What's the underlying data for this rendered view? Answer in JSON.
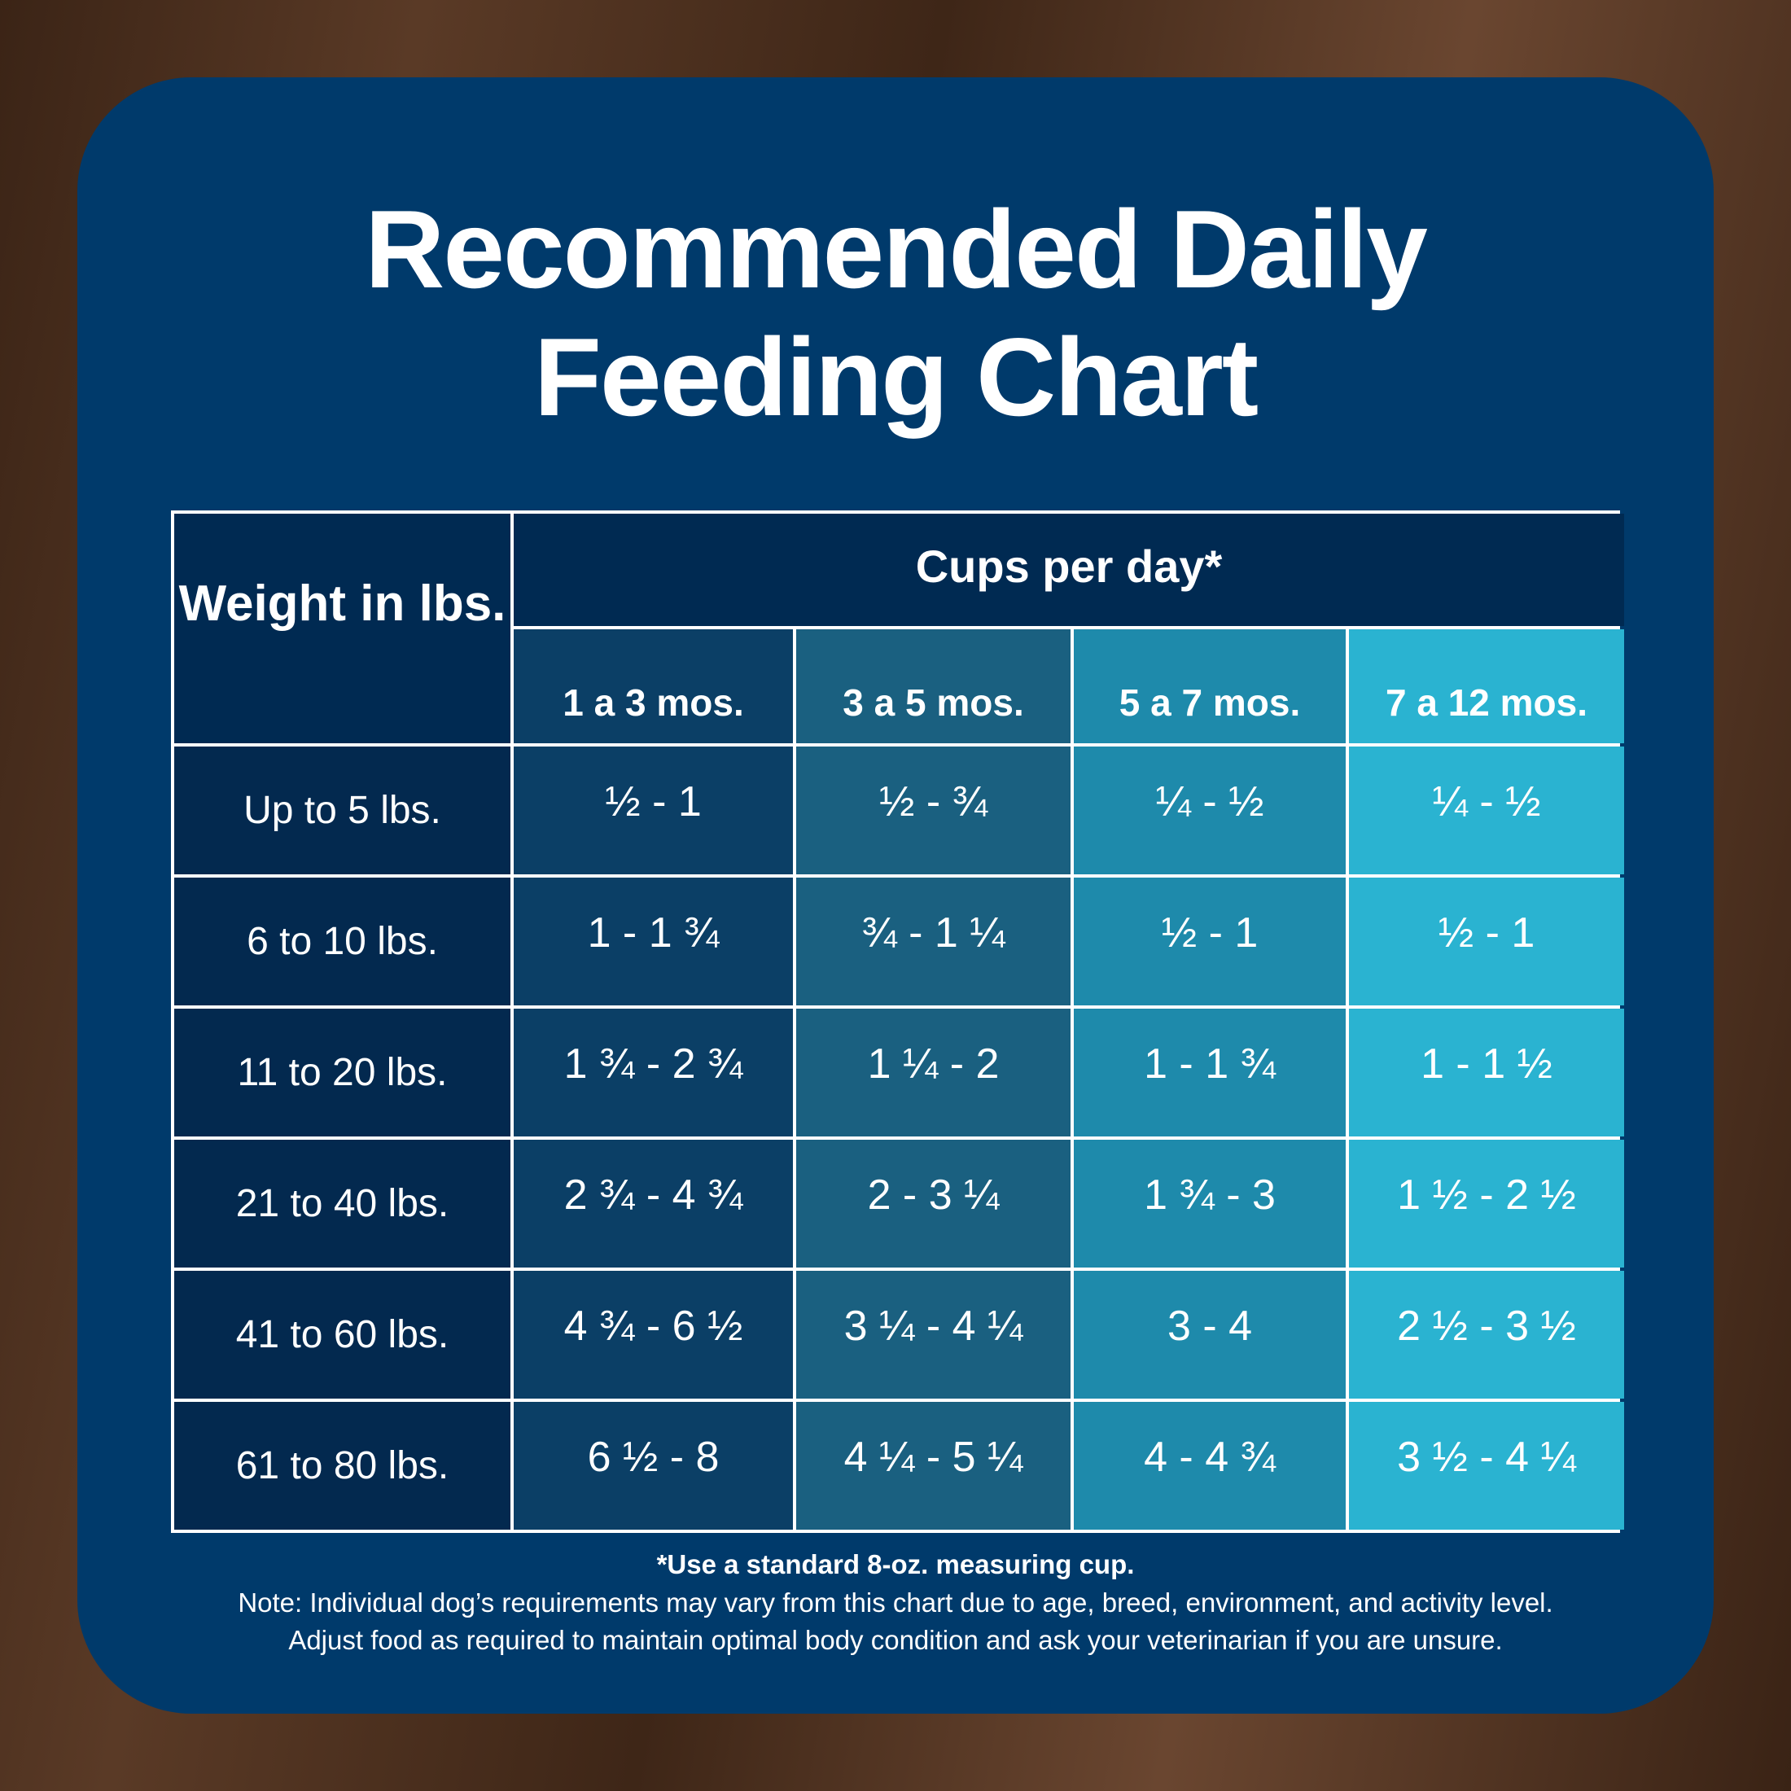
{
  "title": {
    "line1": "Recommended Daily",
    "line2": "Feeding Chart"
  },
  "table": {
    "weight_header": "Weight in lbs.",
    "cups_header": "Cups per day*",
    "age_columns": [
      "1 a 3 mos.",
      "3 a 5 mos.",
      "5 a 7 mos.",
      "7 a 12 mos."
    ],
    "rows": [
      {
        "weight": "Up to 5 lbs.",
        "values": [
          "½ - 1",
          "½ - ¾",
          "¼ - ½",
          "¼ - ½"
        ]
      },
      {
        "weight": "6 to 10 lbs.",
        "values": [
          "1 - 1 ¾",
          "¾ - 1 ¼",
          "½ - 1",
          "½ - 1"
        ]
      },
      {
        "weight": "11 to 20 lbs.",
        "values": [
          "1 ¾ - 2 ¾",
          "1  ¼ - 2",
          "1 - 1 ¾",
          "1 - 1 ½"
        ]
      },
      {
        "weight": "21 to 40 lbs.",
        "values": [
          "2 ¾ - 4 ¾",
          "2 - 3 ¼",
          "1 ¾ - 3",
          "1 ½ - 2 ½"
        ]
      },
      {
        "weight": "41 to 60 lbs.",
        "values": [
          "4 ¾ - 6 ½",
          "3 ¼ - 4 ¼",
          "3 - 4",
          "2 ½ - 3 ½"
        ]
      },
      {
        "weight": "61 to 80 lbs.",
        "values": [
          "6 ½ - 8",
          "4 ¼ - 5 ¼",
          "4 - 4 ¾",
          "3 ½ - 4 ¼"
        ]
      }
    ]
  },
  "footnotes": {
    "cup": "*Use a standard 8-oz. measuring cup.",
    "note1": "Note: Individual dog’s requirements may vary from this chart due to age, breed, environment, and activity level.",
    "note2": "Adjust food as required to maintain optimal body condition and ask your veterinarian if you are unsure."
  },
  "colors": {
    "card": "#003a6b",
    "header": "#002a52",
    "col1": "#0b3f66",
    "col2": "#1a6080",
    "col3": "#1e8aab",
    "col4": "#2ab3d1"
  }
}
